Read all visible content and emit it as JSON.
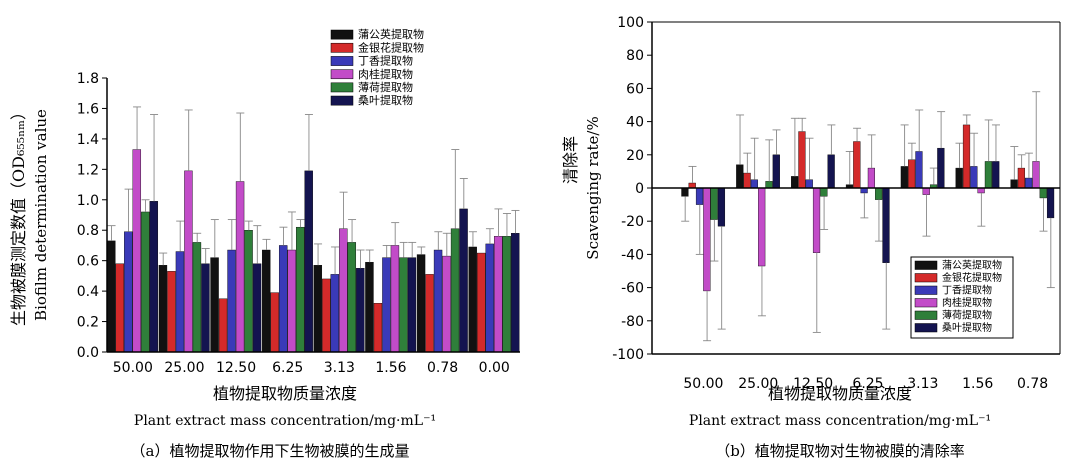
{
  "chart_data": [
    {
      "type": "bar",
      "title": "",
      "caption": "（a）植物提取物作用下生物被膜的生成量",
      "xlabel_cn": "植物提取物质量浓度",
      "xlabel_en": "Plant extract mass concentration/mg·mL⁻¹",
      "ylabel_cn": "生物被膜测定数值（OD₆₅₅ₙₘ）",
      "ylabel_en": "Biofilm determination value",
      "ylim": [
        0,
        1.8
      ],
      "yticks": [
        "0.0",
        "0.2",
        "0.4",
        "0.6",
        "0.8",
        "1.0",
        "1.2",
        "1.4",
        "1.6",
        "1.8"
      ],
      "categories": [
        "50.00",
        "25.00",
        "12.50",
        "6.25",
        "3.13",
        "1.56",
        "0.78",
        "0.00"
      ],
      "legend_position": "top-center",
      "series": [
        {
          "name": "蒲公英提取物",
          "color": "#111111",
          "values": [
            0.73,
            0.57,
            0.62,
            0.67,
            0.57,
            0.59,
            0.64,
            0.69
          ],
          "errors": [
            0.1,
            0.08,
            0.25,
            0.07,
            0.14,
            0.08,
            0.05,
            0.1
          ]
        },
        {
          "name": "金银花提取物",
          "color": "#d42a2a",
          "values": [
            0.58,
            0.53,
            0.35,
            0.39,
            0.48,
            0.32,
            0.51,
            0.65
          ]
        },
        {
          "name": "丁香提取物",
          "color": "#3a3ab8",
          "values": [
            0.79,
            0.66,
            0.67,
            0.7,
            0.51,
            0.62,
            0.67,
            0.71
          ],
          "errors": [
            0.28,
            0.2,
            0.2,
            0.12,
            0.18,
            0.08,
            0.12,
            0.1
          ]
        },
        {
          "name": "肉桂提取物",
          "color": "#c24cc8",
          "values": [
            1.33,
            1.19,
            1.12,
            0.67,
            0.81,
            0.7,
            0.63,
            0.76
          ],
          "errors": [
            0.28,
            0.4,
            0.45,
            0.25,
            0.24,
            0.15,
            0.15,
            0.18
          ]
        },
        {
          "name": "薄荷提取物",
          "color": "#2f7f3a",
          "values": [
            0.92,
            0.72,
            0.8,
            0.82,
            0.72,
            0.62,
            0.81,
            0.76
          ],
          "errors": [
            0.08,
            0.06,
            0.06,
            0.05,
            0.15,
            0.1,
            0.52,
            0.15
          ]
        },
        {
          "name": "桑叶提取物",
          "color": "#141450",
          "values": [
            0.99,
            0.58,
            0.58,
            1.19,
            0.55,
            0.62,
            0.94,
            0.78
          ],
          "errors": [
            0.57,
            0.1,
            0.25,
            0.37,
            0.12,
            0.1,
            0.2,
            0.15
          ]
        }
      ]
    },
    {
      "type": "bar",
      "title": "",
      "caption": "（b）植物提取物对生物被膜的清除率",
      "xlabel_cn": "植物提取物质量浓度",
      "xlabel_en": "Plant extract mass concentration/mg·mL⁻¹",
      "ylabel_cn": "清除率",
      "ylabel_en": "Scavenging rate/%",
      "ylim": [
        -100,
        100
      ],
      "yticks": [
        "-100",
        "-80",
        "-60",
        "-40",
        "-20",
        "0",
        "20",
        "40",
        "60",
        "80",
        "100"
      ],
      "categories": [
        "50.00",
        "25.00",
        "12.50",
        "6.25",
        "3.13",
        "1.56",
        "0.78"
      ],
      "legend_position": "bottom-right",
      "series": [
        {
          "name": "蒲公英提取物",
          "color": "#111111",
          "values": [
            -5,
            14,
            7,
            2,
            13,
            12,
            5
          ],
          "errors": [
            15,
            30,
            35,
            20,
            25,
            15,
            20
          ]
        },
        {
          "name": "金银花提取物",
          "color": "#d42a2a",
          "values": [
            3,
            9,
            34,
            28,
            17,
            38,
            12
          ],
          "errors": [
            10,
            12,
            8,
            8,
            10,
            6,
            8
          ]
        },
        {
          "name": "丁香提取物",
          "color": "#3a3ab8",
          "values": [
            -10,
            5,
            5,
            -3,
            22,
            13,
            6
          ],
          "errors": [
            30,
            25,
            25,
            15,
            25,
            20,
            15
          ]
        },
        {
          "name": "肉桂提取物",
          "color": "#c24cc8",
          "values": [
            -62,
            -47,
            -39,
            12,
            -4,
            -3,
            16
          ],
          "errors": [
            30,
            30,
            48,
            20,
            25,
            20,
            42
          ]
        },
        {
          "name": "薄荷提取物",
          "color": "#2f7f3a",
          "values": [
            -19,
            4,
            -5,
            -7,
            2,
            16,
            -6
          ],
          "errors": [
            25,
            25,
            20,
            25,
            10,
            25,
            20
          ]
        },
        {
          "name": "桑叶提取物",
          "color": "#141450",
          "values": [
            -23,
            20,
            20,
            -45,
            24,
            16,
            -18
          ],
          "errors": [
            62,
            15,
            18,
            40,
            22,
            22,
            42
          ]
        }
      ]
    }
  ]
}
